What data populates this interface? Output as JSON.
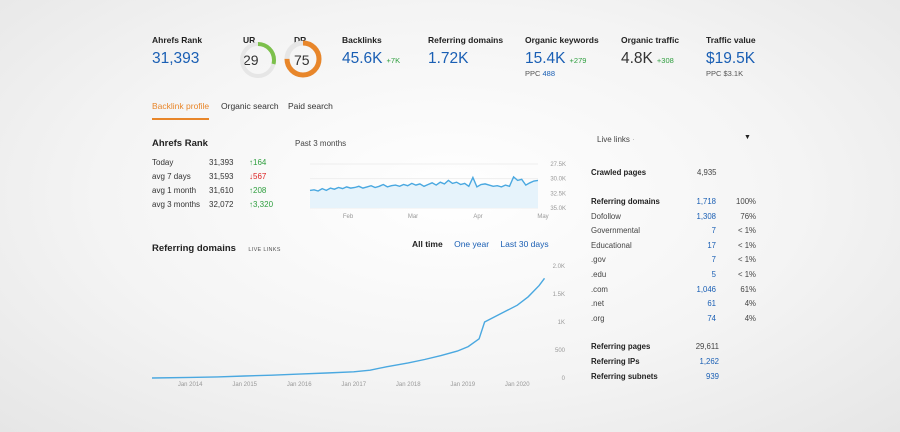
{
  "metrics": {
    "ahrefs_rank": {
      "label": "Ahrefs Rank",
      "value": "31,393"
    },
    "ur": {
      "label": "UR",
      "value": "29",
      "gauge_fraction": 0.29,
      "color": "#7cc04b"
    },
    "dr": {
      "label": "DR",
      "value": "75",
      "gauge_fraction": 0.75,
      "color": "#e8862a"
    },
    "backlinks": {
      "label": "Backlinks",
      "value": "45.6K",
      "delta": "+7K"
    },
    "referring_domains": {
      "label": "Referring domains",
      "value": "1.72K"
    },
    "organic_keywords": {
      "label": "Organic keywords",
      "value": "15.4K",
      "delta": "+279",
      "sub_label": "PPC",
      "sub_value": "488"
    },
    "organic_traffic": {
      "label": "Organic traffic",
      "value": "4.8K",
      "delta": "+308"
    },
    "traffic_value": {
      "label": "Traffic value",
      "value": "$19.5K",
      "sub": "PPC $3.1K"
    }
  },
  "tabs": [
    "Backlink profile",
    "Organic search",
    "Paid search"
  ],
  "rank": {
    "title": "Ahrefs Rank",
    "period": "Past 3 months",
    "rows": [
      {
        "label": "Today",
        "value": "31,393",
        "change": "↑164",
        "dir": "up"
      },
      {
        "label": "avg 7 days",
        "value": "31,593",
        "change": "↓567",
        "dir": "down"
      },
      {
        "label": "avg 1 month",
        "value": "31,610",
        "change": "↑208",
        "dir": "up"
      },
      {
        "label": "avg 3 months",
        "value": "32,072",
        "change": "↑3,320",
        "dir": "up"
      }
    ]
  },
  "chart_data": [
    {
      "type": "line",
      "title": "",
      "x_ticks": [
        "Feb",
        "Mar",
        "Apr",
        "May"
      ],
      "y_ticks": [
        "27.5K",
        "30.0K",
        "32.5K",
        "35.0K"
      ],
      "ylim": [
        27500,
        35000
      ],
      "y_inverted": true,
      "color": "#4aa8e0",
      "values": [
        32000,
        31900,
        32100,
        31700,
        32000,
        31600,
        31800,
        31500,
        31700,
        31400,
        31600,
        31500,
        31300,
        31600,
        31400,
        31200,
        31500,
        31300,
        31000,
        31400,
        31200,
        31100,
        31300,
        31000,
        31200,
        30800,
        31100,
        30900,
        31300,
        31000,
        30700,
        31100,
        30600,
        30900,
        30300,
        30800,
        30600,
        31000,
        30800,
        31300,
        29800,
        31400,
        31000,
        30900,
        31100,
        31300,
        31200,
        31400,
        31100,
        31300,
        29700,
        30300,
        30100,
        31100,
        30700,
        30400,
        30300
      ]
    },
    {
      "type": "line",
      "title": "",
      "x_ticks": [
        "Jan 2014",
        "Jan 2015",
        "Jan 2016",
        "Jan 2017",
        "Jan 2018",
        "Jan 2019",
        "Jan 2020"
      ],
      "y_ticks": [
        "2.0K",
        "1.5K",
        "1K",
        "500",
        "0"
      ],
      "ylim": [
        0,
        2000
      ],
      "color": "#4aa8e0",
      "x": [
        2013.3,
        2014,
        2014.5,
        2015,
        2015.5,
        2016,
        2016.5,
        2017,
        2017.3,
        2017.6,
        2018,
        2018.3,
        2018.6,
        2018.9,
        2019.1,
        2019.3,
        2019.4,
        2019.6,
        2019.8,
        2020,
        2020.2,
        2020.4,
        2020.5
      ],
      "values": [
        0,
        10,
        20,
        35,
        50,
        70,
        90,
        110,
        140,
        200,
        270,
        330,
        400,
        480,
        560,
        700,
        1000,
        1100,
        1200,
        1300,
        1450,
        1650,
        1780
      ]
    }
  ],
  "ref_domains": {
    "title": "Referring domains",
    "badge": "LIVE LINKS",
    "filters": [
      "All time",
      "One year",
      "Last 30 days"
    ],
    "active_filter": 0
  },
  "stats": {
    "dropdown_label": "Live links",
    "crawled_label": "Crawled pages",
    "crawled_value": "4,935",
    "rows": [
      {
        "label": "Referring domains",
        "value": "1,718",
        "pct": "100%",
        "bold": true
      },
      {
        "label": "Dofollow",
        "value": "1,308",
        "pct": "76%"
      },
      {
        "label": "Governmental",
        "value": "7",
        "pct": "< 1%"
      },
      {
        "label": "Educational",
        "value": "17",
        "pct": "< 1%"
      },
      {
        "label": ".gov",
        "value": "7",
        "pct": "< 1%"
      },
      {
        "label": ".edu",
        "value": "5",
        "pct": "< 1%"
      },
      {
        "label": ".com",
        "value": "1,046",
        "pct": "61%"
      },
      {
        "label": ".net",
        "value": "61",
        "pct": "4%"
      },
      {
        "label": ".org",
        "value": "74",
        "pct": "4%"
      }
    ],
    "bottom": [
      {
        "label": "Referring pages",
        "value": "29,611",
        "blue": false
      },
      {
        "label": "Referring IPs",
        "value": "1,262",
        "blue": true
      },
      {
        "label": "Referring subnets",
        "value": "939",
        "blue": true
      }
    ]
  }
}
